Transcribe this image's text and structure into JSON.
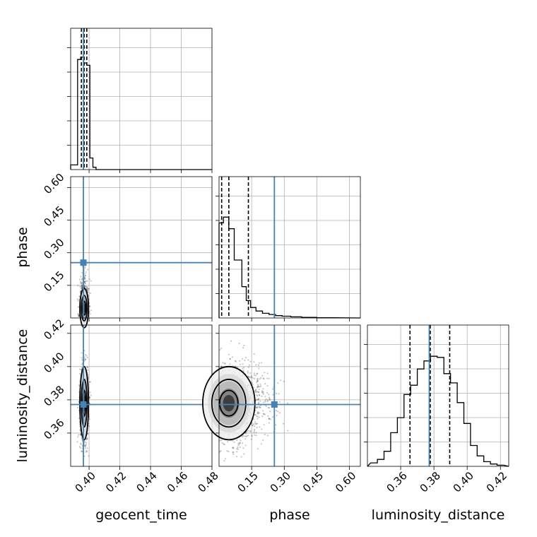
{
  "chart_data": {
    "type": "corner",
    "parameters": [
      "geocent_time",
      "phase",
      "luminosity_distance"
    ],
    "axis_labels": {
      "x": [
        "geocent_time",
        "phase",
        "luminosity_distance"
      ],
      "y": [
        "",
        "phase",
        "luminosity_distance"
      ]
    },
    "ranges": {
      "geocent_time": [
        0.388,
        0.48
      ],
      "phase": [
        0.0,
        0.65
      ],
      "luminosity_distance": [
        0.34,
        0.425
      ]
    },
    "ticks": {
      "geocent_time": [
        "0.40",
        "0.42",
        "0.44",
        "0.46",
        "0.48"
      ],
      "phase": [
        "0.15",
        "0.30",
        "0.45",
        "0.60"
      ],
      "luminosity_distance": [
        "0.36",
        "0.38",
        "0.40",
        "0.42"
      ]
    },
    "tick_values": {
      "geocent_time": [
        0.4,
        0.42,
        0.44,
        0.46,
        0.48
      ],
      "phase": [
        0.15,
        0.3,
        0.45,
        0.6
      ],
      "luminosity_distance": [
        0.36,
        0.38,
        0.4,
        0.42
      ]
    },
    "truths": {
      "geocent_time": 0.3963,
      "phase": 0.2545,
      "luminosity_distance": 0.3772
    },
    "quantiles": {
      "geocent_time": [
        0.395,
        0.3968,
        0.3985
      ],
      "phase": [
        0.012,
        0.045,
        0.135
      ],
      "luminosity_distance": [
        0.3656,
        0.3778,
        0.3895
      ]
    },
    "histograms": {
      "geocent_time": {
        "edges": [
          0.388,
          0.3925,
          0.3945,
          0.3965,
          0.3985,
          0.4005,
          0.4025,
          0.4045,
          0.48
        ],
        "counts": [
          0.04,
          0.95,
          0.97,
          0.92,
          0.9,
          0.1,
          0.02,
          0.0
        ]
      },
      "phase": {
        "edges": [
          0.0,
          0.02,
          0.045,
          0.07,
          0.105,
          0.125,
          0.145,
          0.17,
          0.2,
          0.23,
          0.26,
          0.29,
          0.33,
          0.38,
          0.45,
          0.52
        ],
        "counts": [
          0.82,
          0.87,
          0.77,
          0.5,
          0.27,
          0.15,
          0.09,
          0.06,
          0.04,
          0.03,
          0.02,
          0.015,
          0.01,
          0.005,
          0.002
        ]
      },
      "luminosity_distance": {
        "edges": [
          0.342,
          0.346,
          0.35,
          0.354,
          0.358,
          0.362,
          0.366,
          0.37,
          0.374,
          0.378,
          0.382,
          0.386,
          0.39,
          0.394,
          0.398,
          0.402,
          0.406,
          0.41,
          0.414,
          0.418,
          0.422
        ],
        "counts": [
          0.03,
          0.06,
          0.13,
          0.29,
          0.42,
          0.62,
          0.7,
          0.84,
          0.91,
          0.95,
          0.94,
          0.8,
          0.72,
          0.55,
          0.37,
          0.18,
          0.09,
          0.04,
          0.02,
          0.01
        ]
      }
    },
    "contour_centers": {
      "geocent_time_phase": [
        0.3968,
        0.045
      ],
      "geocent_time_luminosity_distance": [
        0.3968,
        0.378
      ],
      "phase_luminosity_distance": [
        0.045,
        0.378
      ]
    },
    "grid": true,
    "truth_color": "#4682b4",
    "hist_color": "#000000"
  }
}
